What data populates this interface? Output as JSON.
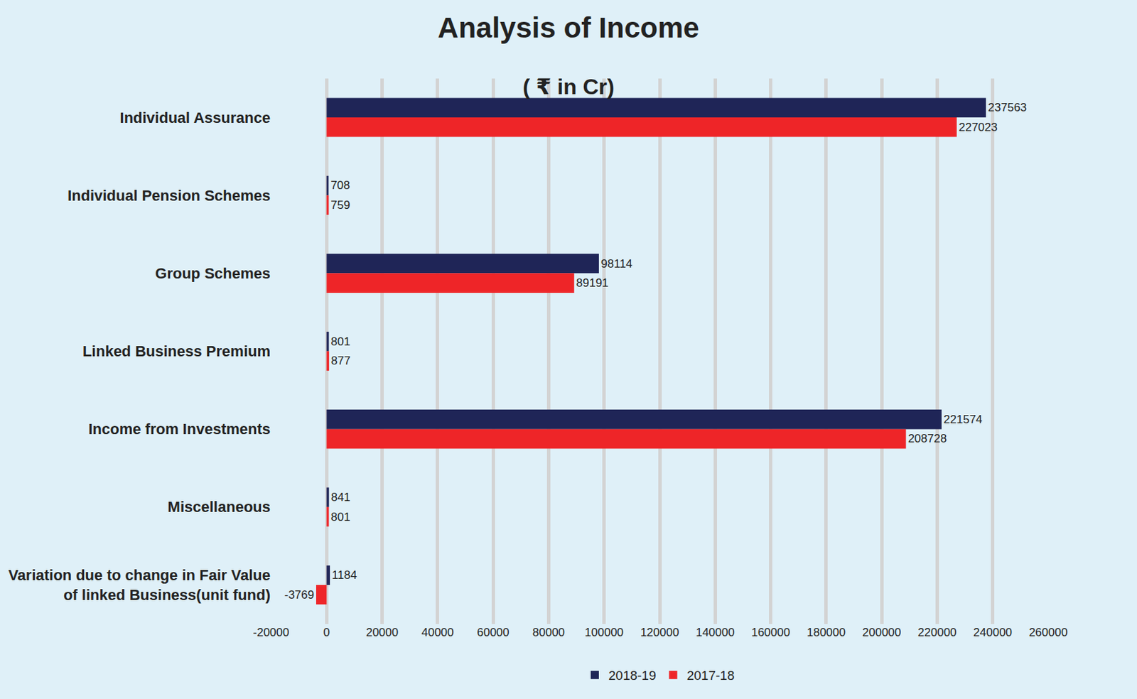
{
  "chart_data": {
    "type": "bar",
    "title": "Analysis of Income",
    "subtitle": "( ₹ in Cr)",
    "orientation": "horizontal",
    "categories": [
      "Individual Assurance",
      "Individual Pension Schemes",
      "Group Schemes",
      "Linked Business Premium",
      "Income from Investments",
      "Miscellaneous",
      "Variation due to change in Fair Value\nof linked Business(unit fund)"
    ],
    "series": [
      {
        "name": "2018-19",
        "color": "#1f2557",
        "values": [
          237563,
          708,
          98114,
          801,
          221574,
          841,
          1184
        ]
      },
      {
        "name": "2017-18",
        "color": "#ee2528",
        "values": [
          227023,
          759,
          89191,
          877,
          208728,
          801,
          -3769
        ]
      }
    ],
    "xlim": [
      -20000,
      260000
    ],
    "xticks": [
      -20000,
      0,
      20000,
      40000,
      60000,
      80000,
      100000,
      120000,
      140000,
      160000,
      180000,
      200000,
      220000,
      240000,
      260000
    ],
    "grid": true,
    "legend": "bottom",
    "data_labels": true
  }
}
